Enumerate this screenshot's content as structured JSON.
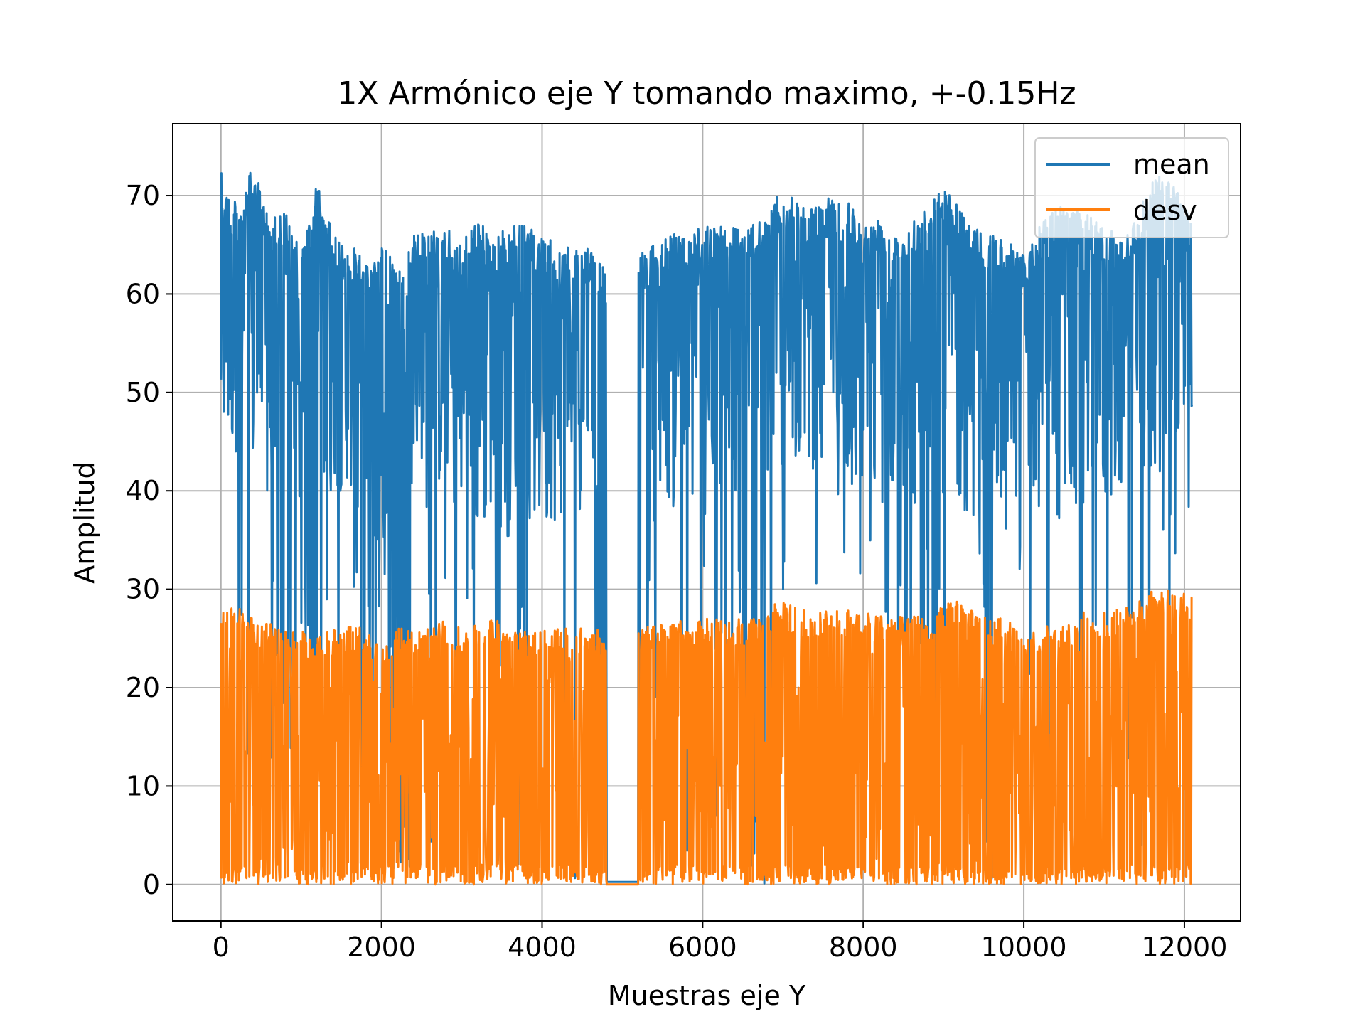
{
  "chart_data": {
    "type": "line",
    "title": "1X Armónico eje Y tomando maximo, +-0.15Hz",
    "xlabel": "Muestras eje Y",
    "ylabel": "Amplitud",
    "xlim": [
      -600,
      12700
    ],
    "ylim": [
      -3.7,
      77.3
    ],
    "xticks": [
      0,
      2000,
      4000,
      6000,
      8000,
      10000,
      12000
    ],
    "yticks": [
      0,
      10,
      20,
      30,
      40,
      50,
      60,
      70
    ],
    "grid": true,
    "legend_position": "top-right",
    "gaps": [
      [
        4800,
        5200
      ]
    ],
    "series": [
      {
        "name": "mean",
        "color": "#1f77b4",
        "x": [
          0,
          200,
          400,
          600,
          800,
          1000,
          1200,
          1400,
          1600,
          1800,
          2000,
          2200,
          2400,
          2600,
          2800,
          3000,
          3200,
          3400,
          3600,
          3800,
          4000,
          4200,
          4400,
          4600,
          4800,
          5200,
          5400,
          5600,
          5800,
          6000,
          6200,
          6400,
          6600,
          6800,
          7000,
          7200,
          7400,
          7600,
          7800,
          8000,
          8200,
          8400,
          8600,
          8800,
          9000,
          9200,
          9400,
          9600,
          9800,
          10000,
          10200,
          10400,
          10600,
          10800,
          11000,
          11200,
          11400,
          11600,
          11800,
          12100
        ],
        "upper": [
          72.5,
          69,
          73,
          68,
          68.5,
          64,
          71.5,
          66,
          65,
          64,
          65,
          63,
          66,
          66.5,
          67,
          65,
          68,
          66,
          67,
          67,
          66,
          65,
          65,
          64.5,
          63,
          64,
          65,
          66,
          67,
          67,
          68,
          67,
          67,
          68,
          71,
          69,
          69,
          70,
          70,
          67,
          68,
          67,
          68,
          69,
          71,
          69,
          67,
          66,
          66,
          64,
          67,
          69,
          69,
          68,
          67,
          66,
          68,
          72,
          73,
          67
        ],
        "lower": [
          42,
          44,
          40,
          39,
          0,
          40,
          0,
          39,
          41,
          0,
          28,
          0,
          37,
          38,
          41,
          34,
          35,
          37,
          35,
          36,
          35,
          37,
          38,
          38,
          0,
          0,
          38,
          39,
          39,
          37,
          38,
          38,
          0,
          42,
          41,
          43,
          42,
          40,
          39,
          39,
          38,
          40,
          41,
          0,
          41,
          38,
          37,
          36,
          35,
          34,
          36,
          36,
          37,
          37,
          38,
          40,
          42,
          41,
          43,
          44
        ]
      },
      {
        "name": "desv",
        "color": "#ff7f0e",
        "x": [
          0,
          200,
          400,
          600,
          800,
          1000,
          1200,
          1400,
          1600,
          1800,
          2000,
          2200,
          2400,
          2600,
          2800,
          3000,
          3200,
          3400,
          3600,
          3800,
          4000,
          4200,
          4400,
          4600,
          4800,
          5200,
          5400,
          5600,
          5800,
          6000,
          6200,
          6400,
          6600,
          6800,
          7000,
          7200,
          7400,
          7600,
          7800,
          8000,
          8200,
          8400,
          8600,
          8800,
          9000,
          9200,
          9400,
          9600,
          9800,
          10000,
          10200,
          10400,
          10600,
          10800,
          11000,
          11200,
          11400,
          11600,
          11800,
          12100
        ],
        "upper": [
          27.5,
          29,
          27,
          26.5,
          26,
          26,
          25,
          26,
          26.5,
          26,
          24,
          26,
          26,
          26,
          27,
          26,
          26.5,
          27,
          26,
          26,
          26,
          26,
          26,
          26,
          26,
          26,
          26.5,
          27,
          27,
          27,
          27,
          27,
          27,
          28,
          29,
          28,
          28,
          28,
          28,
          28,
          27.5,
          27,
          28,
          27,
          29,
          29,
          28,
          28,
          27,
          25,
          26,
          27,
          27,
          28,
          28,
          28,
          29,
          30,
          30,
          29.5
        ],
        "lower": [
          0,
          0,
          0,
          0,
          0,
          0,
          0,
          0,
          0,
          0,
          0,
          0,
          0,
          0,
          0,
          0,
          0,
          0,
          0,
          0,
          0,
          0,
          0,
          0,
          0,
          0,
          0,
          0,
          0,
          0,
          0,
          0,
          0,
          0,
          0,
          0,
          0,
          0,
          0,
          0,
          0,
          0,
          0,
          0,
          0,
          0,
          0,
          0,
          0,
          0,
          0,
          0,
          0,
          0,
          0,
          0,
          0,
          0,
          0,
          0
        ]
      }
    ]
  }
}
